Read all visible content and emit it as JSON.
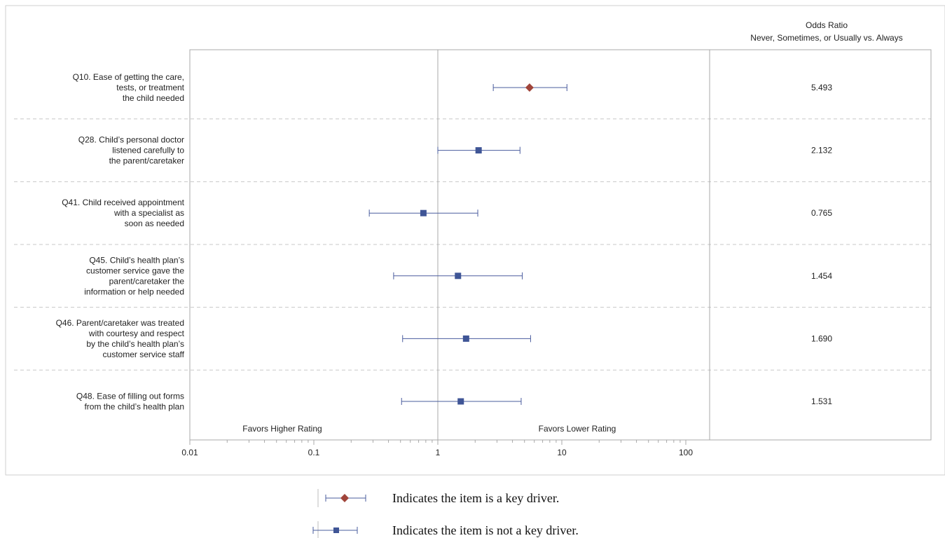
{
  "chart_data": {
    "type": "forest",
    "x_scale": "log",
    "xlim": [
      0.01,
      150
    ],
    "x_ticks": [
      "0.01",
      "0.1",
      "1",
      "10",
      "100"
    ],
    "reference_value": 1,
    "right_column_header": [
      "Odds Ratio",
      "Never, Sometimes, or Usually vs. Always"
    ],
    "favor_left_label": "Favors Higher Rating",
    "favor_right_label": "Favors Lower Rating",
    "rows": [
      {
        "label_lines": [
          "Q10. Ease of getting the care,",
          "tests, or treatment",
          "the child needed"
        ],
        "estimate": 5.493,
        "lower": 2.8,
        "upper": 11.0,
        "estimate_label": "5.493",
        "key_driver": true
      },
      {
        "label_lines": [
          "Q28. Child’s personal doctor",
          "listened carefully to",
          "the parent/caretaker"
        ],
        "estimate": 2.132,
        "lower": 1.0,
        "upper": 4.6,
        "estimate_label": "2.132",
        "key_driver": false
      },
      {
        "label_lines": [
          "Q41. Child received appointment",
          "with a specialist as",
          "soon as needed"
        ],
        "estimate": 0.765,
        "lower": 0.28,
        "upper": 2.1,
        "estimate_label": "0.765",
        "key_driver": false
      },
      {
        "label_lines": [
          "Q45. Child’s health plan’s",
          "customer service gave the",
          "parent/caretaker the",
          "information or help needed"
        ],
        "estimate": 1.454,
        "lower": 0.44,
        "upper": 4.8,
        "estimate_label": "1.454",
        "key_driver": false
      },
      {
        "label_lines": [
          "Q46. Parent/caretaker was treated",
          "with courtesy and respect",
          "by the child’s health plan’s",
          "customer service staff"
        ],
        "estimate": 1.69,
        "lower": 0.52,
        "upper": 5.6,
        "estimate_label": "1.690",
        "key_driver": false
      },
      {
        "label_lines": [
          "Q48. Ease of filling out forms",
          "from the child’s health plan"
        ],
        "estimate": 1.531,
        "lower": 0.51,
        "upper": 4.7,
        "estimate_label": "1.531",
        "key_driver": false
      }
    ]
  },
  "legend": {
    "key_driver": "Indicates the item is a key driver.",
    "not_key_driver": "Indicates the item is not a key driver."
  },
  "colors": {
    "key_driver_marker": "#a0443a",
    "marker": "#3f5596",
    "whisker": "#4a5c9e",
    "frame": "#a8a8a8",
    "separator": "#c8c8c8",
    "text": "#222222"
  }
}
